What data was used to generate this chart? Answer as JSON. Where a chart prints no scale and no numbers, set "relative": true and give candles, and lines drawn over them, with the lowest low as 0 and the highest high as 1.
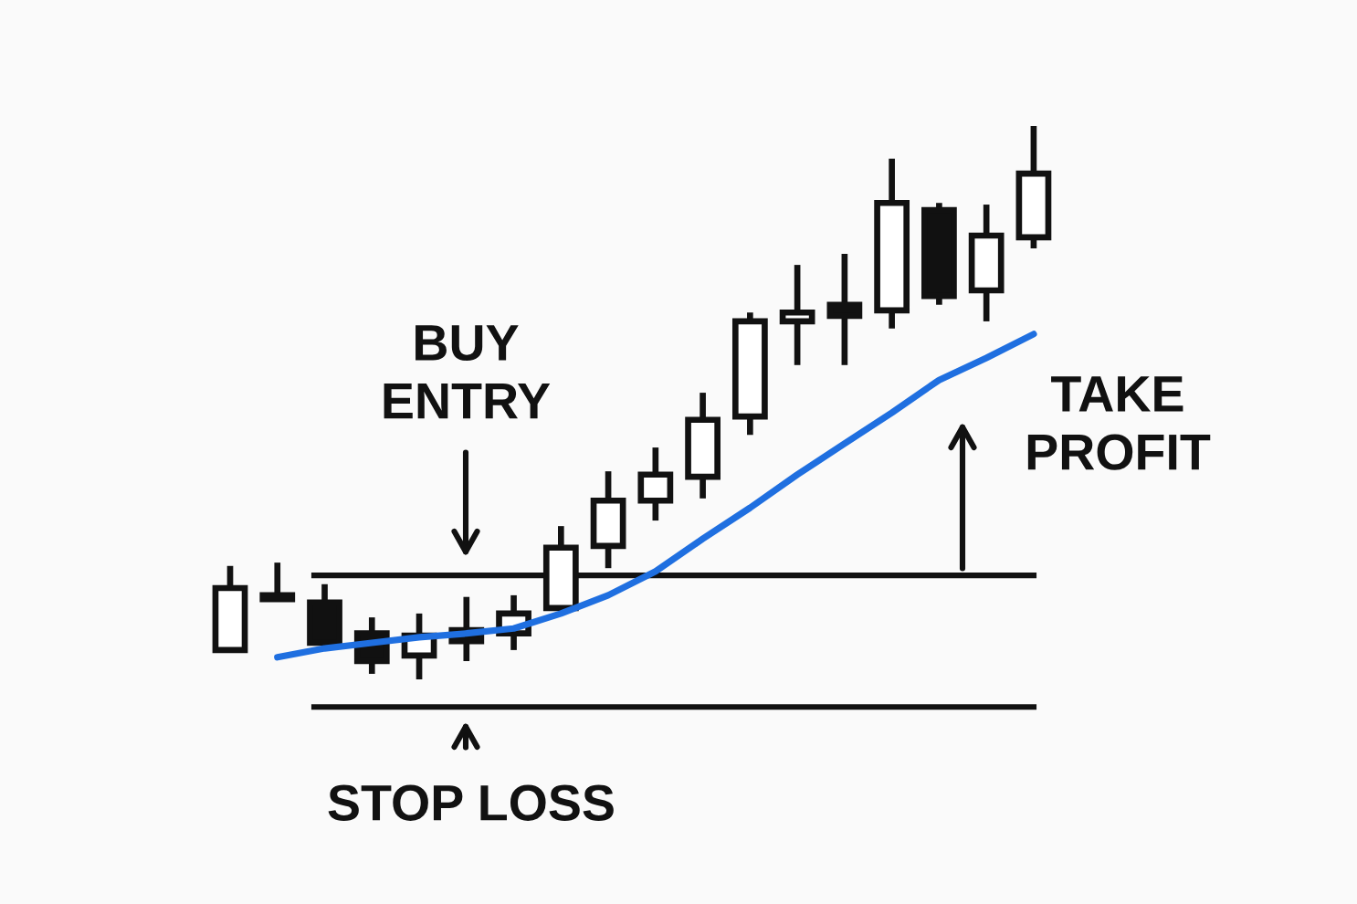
{
  "chart_data": {
    "type": "candlestick",
    "relative": true,
    "categories": [
      null,
      null,
      null,
      null,
      null,
      null,
      null,
      null,
      null,
      null,
      null,
      null,
      null,
      null,
      null,
      null,
      null,
      null
    ],
    "ohlc": [
      [
        0.053,
        0.205,
        0.053,
        0.165
      ],
      [
        0.152,
        0.211,
        0.145,
        0.145
      ],
      [
        0.139,
        0.172,
        0.053,
        0.066
      ],
      [
        0.083,
        0.112,
        0.01,
        0.033
      ],
      [
        0.043,
        0.119,
        0,
        0.079
      ],
      [
        0.089,
        0.149,
        0.033,
        0.069
      ],
      [
        0.083,
        0.152,
        0.053,
        0.119
      ],
      [
        0.129,
        0.277,
        0.129,
        0.238
      ],
      [
        0.241,
        0.376,
        0.201,
        0.323
      ],
      [
        0.323,
        0.419,
        0.287,
        0.37
      ],
      [
        0.366,
        0.518,
        0.327,
        0.469
      ],
      [
        0.475,
        0.663,
        0.442,
        0.647
      ],
      [
        0.647,
        0.749,
        0.568,
        0.663
      ],
      [
        0.677,
        0.769,
        0.568,
        0.657
      ],
      [
        0.667,
        0.941,
        0.634,
        0.861
      ],
      [
        0.848,
        0.861,
        0.677,
        0.693
      ],
      [
        0.703,
        0.858,
        0.647,
        0.802
      ],
      [
        0.799,
        1,
        0.779,
        0.914
      ]
    ],
    "series": [
      {
        "type": "line",
        "color": "#1f6fe0",
        "values": [
          null,
          0.04,
          0.056,
          0.066,
          0.076,
          0.083,
          0.092,
          0.119,
          0.152,
          0.195,
          0.254,
          0.31,
          0.37,
          0.426,
          0.482,
          0.541,
          0.581,
          0.624
        ]
      }
    ],
    "ref_lines": [
      {
        "axis": "y",
        "value": 0.188,
        "color": "#111111"
      },
      {
        "axis": "y",
        "value": -0.05,
        "color": "#111111"
      }
    ],
    "annotations": [
      "BUY\nENTRY",
      "STOP LOSS",
      "TAKE\nPROFIT"
    ],
    "grid": false,
    "legend": false,
    "tick_labels": false
  }
}
